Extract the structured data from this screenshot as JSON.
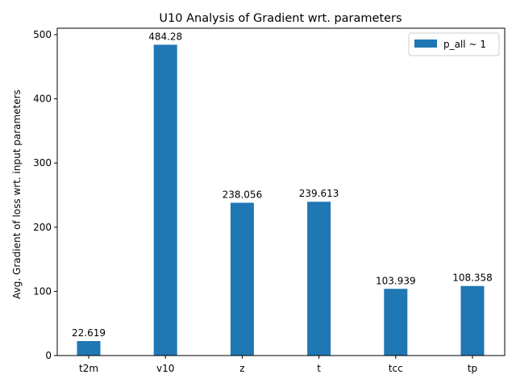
{
  "chart_data": {
    "type": "bar",
    "title": "U10 Analysis of Gradient wrt. parameters",
    "xlabel": "",
    "ylabel": "Avg. Gradient of loss wrt. input parameters",
    "categories": [
      "t2m",
      "v10",
      "z",
      "t",
      "tcc",
      "tp"
    ],
    "series": [
      {
        "name": "p_all ~ 1",
        "values": [
          22.619,
          484.28,
          238.056,
          239.613,
          103.939,
          108.358
        ],
        "labels": [
          "22.619",
          "484.28",
          "238.056",
          "239.613",
          "103.939",
          "108.358"
        ],
        "color": "#1f77b4"
      }
    ],
    "ylim": [
      0,
      510
    ],
    "yticks": [
      0,
      100,
      200,
      300,
      400,
      500
    ],
    "grid": false,
    "legend": "top-right"
  }
}
